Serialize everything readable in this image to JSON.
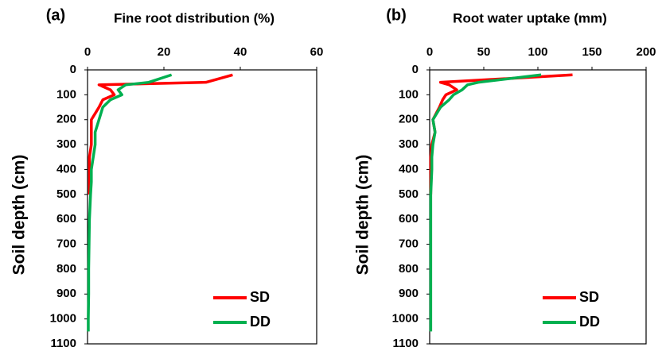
{
  "chart_data": [
    {
      "type": "line",
      "panel_label": "(a)",
      "title": "Fine root distribution (%)",
      "y_label": "Soil depth (cm)",
      "depths": [
        20,
        50,
        60,
        80,
        100,
        120,
        150,
        200,
        250,
        300,
        350,
        400,
        450,
        500,
        600,
        700,
        800,
        900,
        1000,
        1050
      ],
      "series": [
        {
          "name": "SD",
          "color": "#ff0000",
          "values": [
            38,
            31,
            3,
            6,
            7,
            4,
            3,
            1,
            1,
            1,
            0.5,
            0.5,
            0.5,
            0.5,
            null,
            null,
            null,
            null,
            null,
            null
          ]
        },
        {
          "name": "DD",
          "color": "#00b050",
          "values": [
            22,
            16,
            10,
            8,
            9,
            6,
            4,
            3,
            2,
            2,
            1.5,
            1,
            1,
            0.8,
            0.5,
            0.4,
            0.3,
            0.3,
            0.2,
            0.2
          ]
        }
      ],
      "xlim": [
        0,
        60
      ],
      "xticks": [
        0,
        20,
        40,
        60
      ],
      "ylim": [
        0,
        1100
      ],
      "yticks": [
        0,
        100,
        200,
        300,
        400,
        500,
        600,
        700,
        800,
        900,
        1000,
        1100
      ],
      "y_inverted": true,
      "legend": "lower right"
    },
    {
      "type": "line",
      "panel_label": "(b)",
      "title": "Root water uptake (mm)",
      "y_label": "Soil depth (cm)",
      "depths": [
        20,
        50,
        60,
        80,
        100,
        120,
        150,
        200,
        250,
        300,
        350,
        400,
        450,
        500,
        600,
        700,
        800,
        900,
        1000,
        1050
      ],
      "series": [
        {
          "name": "SD",
          "color": "#ff0000",
          "values": [
            132,
            10,
            18,
            25,
            15,
            12,
            9,
            3,
            5,
            2,
            1,
            1,
            1,
            1,
            null,
            null,
            null,
            null,
            null,
            null
          ]
        },
        {
          "name": "DD",
          "color": "#00b050",
          "values": [
            103,
            45,
            35,
            30,
            22,
            18,
            10,
            3,
            5,
            3,
            2,
            2,
            1.5,
            1,
            1,
            1,
            1,
            1,
            1,
            1
          ]
        }
      ],
      "xlim": [
        0,
        200
      ],
      "xticks": [
        0,
        50,
        100,
        150,
        200
      ],
      "ylim": [
        0,
        1100
      ],
      "yticks": [
        0,
        100,
        200,
        300,
        400,
        500,
        600,
        700,
        800,
        900,
        1000,
        1100
      ],
      "y_inverted": true,
      "legend": "lower right"
    }
  ]
}
